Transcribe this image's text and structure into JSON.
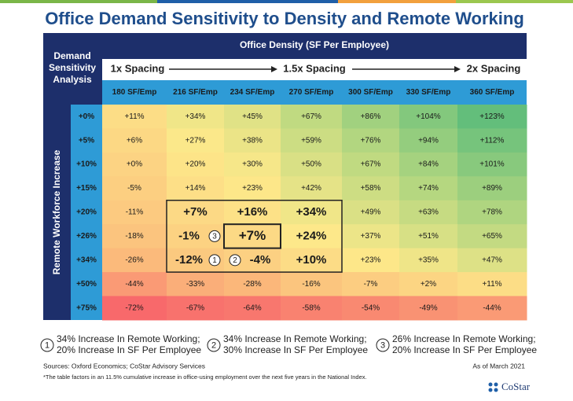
{
  "header": {
    "title": "Office Demand Sensitivity to Density and Remote Working"
  },
  "table": {
    "corner": "Demand Sensitivity Analysis",
    "column_group": "Office Density (SF Per Employee)",
    "spacing": [
      "1x Spacing",
      "1.5x Spacing",
      "2x Spacing"
    ],
    "row_group": "Remote Workforce Increase",
    "columns": [
      "180 SF/Emp",
      "216 SF/Emp",
      "234 SF/Emp",
      "270 SF/Emp",
      "300 SF/Emp",
      "330 SF/Emp",
      "360 SF/Emp"
    ],
    "row_labels": [
      "+0%",
      "+5%",
      "+10%",
      "+15%",
      "+20%",
      "+26%",
      "+34%",
      "+50%",
      "+75%"
    ],
    "rows": [
      [
        "+11%",
        "+34%",
        "+45%",
        "+67%",
        "+86%",
        "+104%",
        "+123%"
      ],
      [
        "+6%",
        "+27%",
        "+38%",
        "+59%",
        "+76%",
        "+94%",
        "+112%"
      ],
      [
        "+0%",
        "+20%",
        "+30%",
        "+50%",
        "+67%",
        "+84%",
        "+101%"
      ],
      [
        "-5%",
        "+14%",
        "+23%",
        "+42%",
        "+58%",
        "+74%",
        "+89%"
      ],
      [
        "-11%",
        "+7%",
        "+16%",
        "+34%",
        "+49%",
        "+63%",
        "+78%"
      ],
      [
        "-18%",
        "-1%",
        "+7%",
        "+24%",
        "+37%",
        "+51%",
        "+65%"
      ],
      [
        "-26%",
        "-12%",
        "-4%",
        "+10%",
        "+23%",
        "+35%",
        "+47%"
      ],
      [
        "-44%",
        "-33%",
        "-28%",
        "-16%",
        "-7%",
        "+2%",
        "+11%"
      ],
      [
        "-72%",
        "-67%",
        "-64%",
        "-58%",
        "-54%",
        "-49%",
        "-44%"
      ]
    ],
    "markers": [
      {
        "row": 5,
        "col": 1,
        "label": "3"
      },
      {
        "row": 6,
        "col": 1,
        "label": "1"
      },
      {
        "row": 6,
        "col": 2,
        "label": "2"
      }
    ],
    "color_scale": [
      "#f8696b",
      "#fbbf7c",
      "#fde98a",
      "#b5d780",
      "#63be7b"
    ]
  },
  "notes": [
    {
      "marker": "1",
      "lines": [
        "34% Increase In Remote Working;",
        "20% Increase In SF Per Employee"
      ]
    },
    {
      "marker": "2",
      "lines": [
        "34% Increase In Remote Working;",
        "30% Increase In SF Per Employee"
      ]
    },
    {
      "marker": "3",
      "lines": [
        "26% Increase In Remote Working;",
        "20% Increase In SF Per Employee"
      ]
    }
  ],
  "footer": {
    "sources": "Sources: Oxford Economics; CoStar Advisory Services",
    "date": "As of March 2021",
    "footnote": "*The table factors in an 11.5% cumulative increase in office-using employment over the next five years in the National Index.",
    "logo": "CoStar"
  }
}
